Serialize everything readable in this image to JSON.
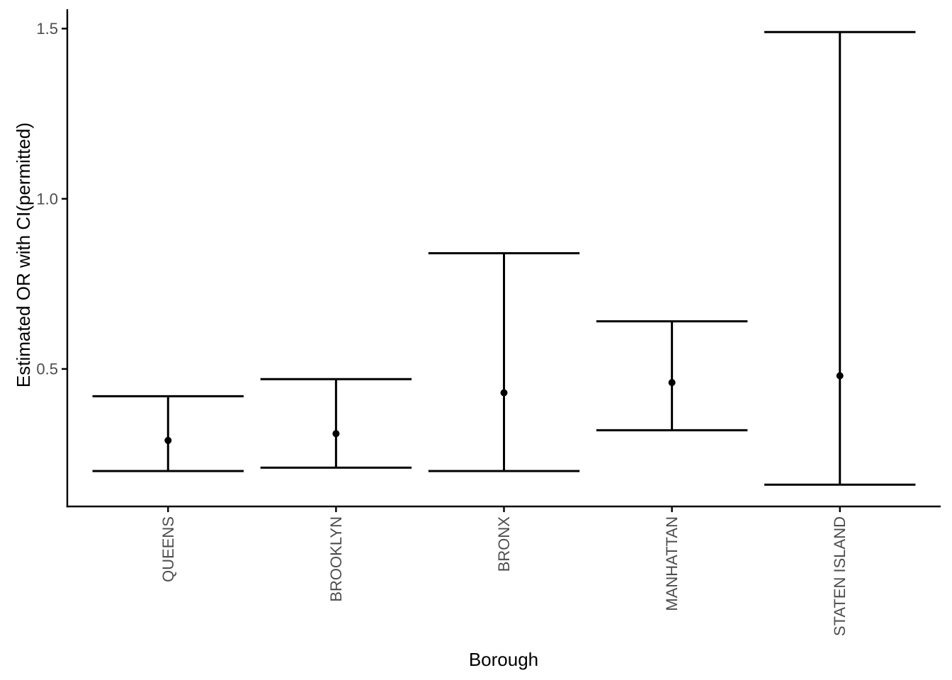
{
  "chart_data": {
    "type": "scatter",
    "error_bars": true,
    "title": "",
    "xlabel": "Borough",
    "ylabel": "Estimated OR with CI(permitted)",
    "categories": [
      "QUEENS",
      "BROOKLYN",
      "BRONX",
      "MANHATTAN",
      "STATEN ISLAND"
    ],
    "series": [
      {
        "name": "estimated_or",
        "values": [
          0.29,
          0.31,
          0.43,
          0.46,
          0.48
        ]
      },
      {
        "name": "ci_lower",
        "values": [
          0.2,
          0.21,
          0.2,
          0.32,
          0.16
        ]
      },
      {
        "name": "ci_upper",
        "values": [
          0.42,
          0.47,
          0.84,
          0.64,
          1.49
        ]
      }
    ],
    "y_ticks": {
      "values": [
        0.5,
        1.0,
        1.5
      ],
      "labels": [
        "0.5",
        "1.0",
        "1.5"
      ]
    },
    "ylim": [
      0.096,
      1.557
    ],
    "grid": "off",
    "legend": "none",
    "x_label_rotation_deg": -90,
    "colors": {
      "data": "#000000",
      "axis_line": "#000000",
      "axis_text": "#4d4d4d",
      "axis_title": "#000000",
      "background": "#ffffff"
    }
  }
}
